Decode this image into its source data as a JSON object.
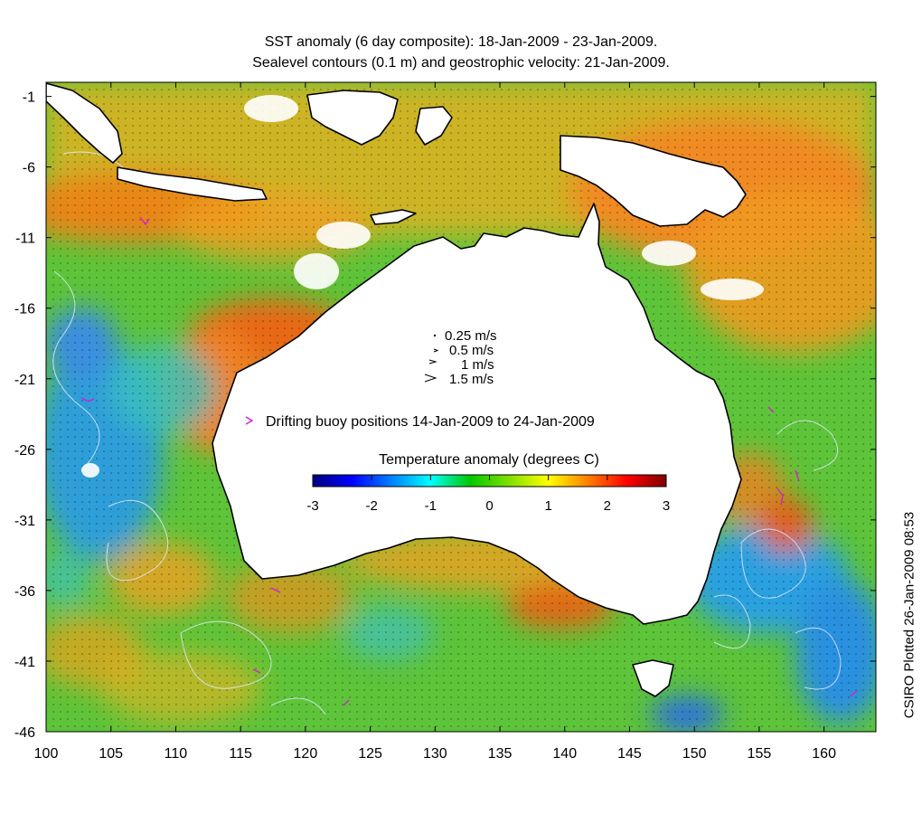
{
  "title_line_1": "SST anomaly (6 day composite): 18-Jan-2009 - 23-Jan-2009.",
  "title_line_2": "Sealevel contours (0.1 m) and geostrophic velocity: 21-Jan-2009.",
  "credit": "CSIRO Plotted 26-Jan-2009 08:53",
  "velocity_legend": [
    "0.25 m/s",
    "0.5 m/s",
    "1 m/s",
    "1.5 m/s"
  ],
  "buoy_legend": "Drifting buoy positions 14-Jan-2009 to 24-Jan-2009",
  "colorbar": {
    "title": "Temperature anomaly (degrees C)",
    "min": -3,
    "max": 3,
    "ticks": [
      "-3",
      "-2",
      "-1",
      "0",
      "1",
      "2",
      "3"
    ],
    "colors": [
      "#00007f",
      "#0000ff",
      "#0080ff",
      "#00ffff",
      "#00c800",
      "#80e000",
      "#ffff00",
      "#ff8000",
      "#ff0000",
      "#800000"
    ]
  },
  "axes": {
    "x_ticks": [
      "100",
      "105",
      "110",
      "115",
      "120",
      "125",
      "130",
      "135",
      "140",
      "145",
      "150",
      "155",
      "160"
    ],
    "y_ticks": [
      "-1",
      "-6",
      "-11",
      "-16",
      "-21",
      "-26",
      "-31",
      "-36",
      "-41",
      "-46"
    ],
    "lon_range": [
      100,
      164
    ],
    "lat_range": [
      -46,
      0
    ]
  },
  "colors": {
    "sea_warm": "#f0a020",
    "sea_neutral": "#6ccf3a",
    "sea_cool": "#2ea0d8",
    "land": "#ffffff",
    "coast": "#000000",
    "contour": "#dfe9ff",
    "buoy": "#d020d0"
  }
}
